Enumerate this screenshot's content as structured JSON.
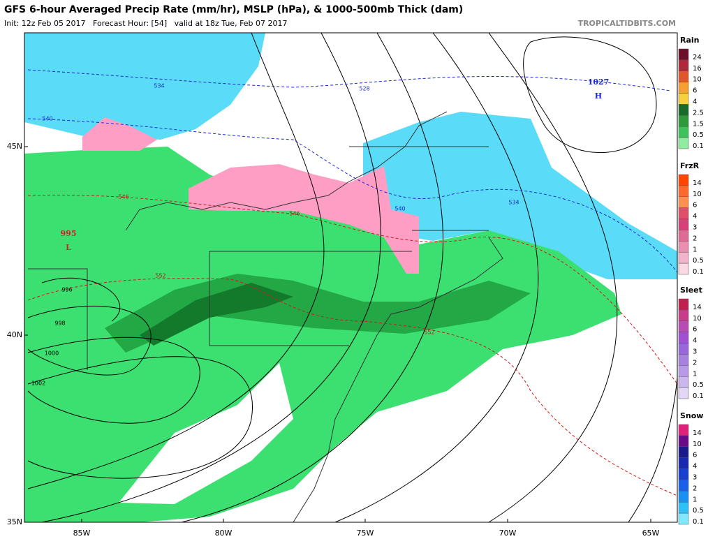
{
  "header": {
    "title": "GFS 6-hour Averaged Precip Rate (mm/hr), MSLP (hPa), & 1000-500mb Thick (dam)",
    "subtitle": "Init: 12z Feb 05 2017   Forecast Hour: [54]   valid at 18z Tue, Feb 07 2017",
    "watermark": "TROPICALTIDBITS.COM"
  },
  "map": {
    "latitude_labels": [
      "45N",
      "40N",
      "35N"
    ],
    "longitude_labels": [
      "85W",
      "80W",
      "75W",
      "70W",
      "65W"
    ],
    "isobar_labels": [
      996,
      998,
      1000,
      1002
    ],
    "thickness_labels": [
      534,
      528,
      540,
      546,
      546,
      540,
      534,
      552,
      552
    ],
    "pressure_centers": [
      {
        "value": 995,
        "symbol": "L"
      },
      {
        "value": 1027,
        "symbol": "H"
      }
    ]
  },
  "legend": [
    {
      "title": "Rain",
      "labels": [
        24,
        16,
        10,
        6,
        4,
        2.5,
        1.5,
        0.5,
        0.1
      ]
    },
    {
      "title": "FrzR",
      "labels": [
        14,
        10,
        6,
        4,
        3,
        2,
        1,
        0.5,
        0.1
      ]
    },
    {
      "title": "Sleet",
      "labels": [
        14,
        10,
        6,
        4,
        3,
        2,
        1,
        0.5,
        0.1
      ]
    },
    {
      "title": "Snow",
      "labels": [
        14,
        10,
        6,
        4,
        3,
        2,
        1,
        0.5,
        0.1
      ]
    }
  ]
}
